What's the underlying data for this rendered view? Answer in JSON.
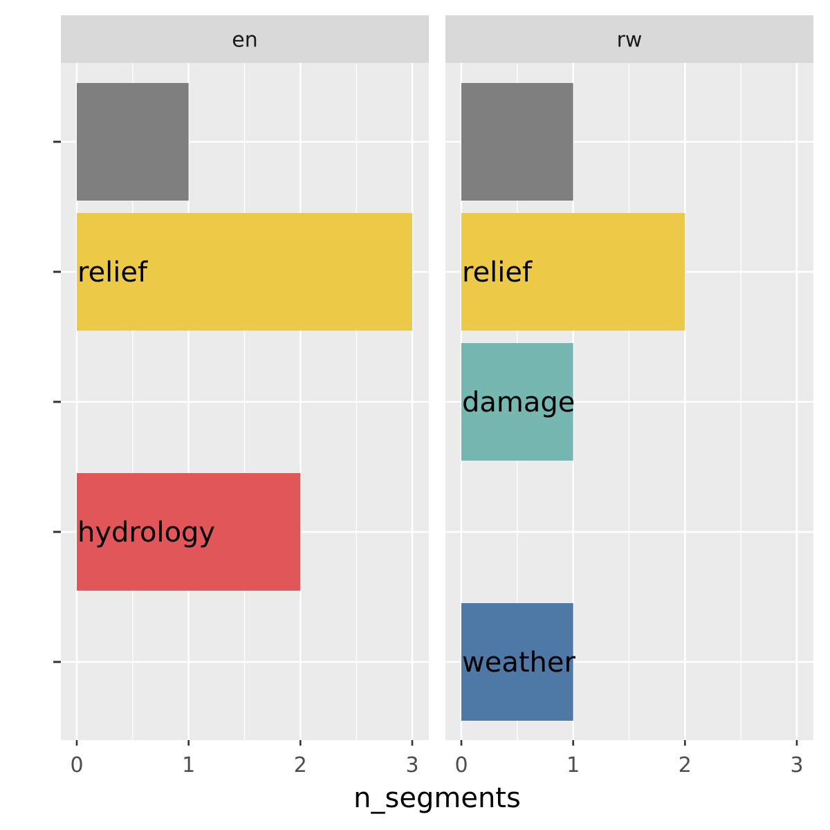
{
  "chart_data": {
    "type": "bar",
    "orientation": "horizontal",
    "facet_by": "language",
    "xlabel": "n_segments",
    "xlim": [
      0,
      3
    ],
    "x_ticks": [
      0,
      1,
      2,
      3
    ],
    "grid": true,
    "y_tick_labels": [
      "",
      "",
      "",
      "",
      ""
    ],
    "colors": {
      "panel_bg": "#EBEBEB",
      "strip_bg": "#D9D9D9",
      "grid": "#FFFFFF"
    },
    "panels": [
      {
        "strip": "en",
        "bars": [
          {
            "row": 0,
            "value": 1,
            "label": "",
            "color": "#7F7F7F"
          },
          {
            "row": 1,
            "value": 3,
            "label": "relief",
            "color": "#EDC948"
          },
          {
            "row": 3,
            "value": 2,
            "label": "hydrology",
            "color": "#E15759"
          }
        ]
      },
      {
        "strip": "rw",
        "bars": [
          {
            "row": 0,
            "value": 1,
            "label": "",
            "color": "#7F7F7F"
          },
          {
            "row": 1,
            "value": 2,
            "label": "relief",
            "color": "#EDC948"
          },
          {
            "row": 2,
            "value": 1,
            "label": "damage",
            "color": "#76B7B2"
          },
          {
            "row": 4,
            "value": 1,
            "label": "weather",
            "color": "#4E79A7"
          }
        ]
      }
    ]
  }
}
